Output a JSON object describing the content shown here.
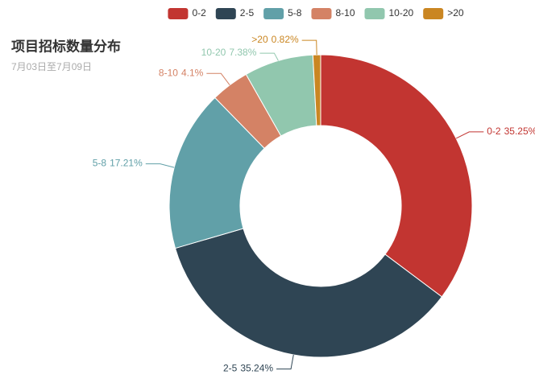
{
  "chart_data": {
    "type": "donut",
    "title": "项目招标数量分布",
    "subtitle": "7月03日至7月09日",
    "categories": [
      "0-2",
      "2-5",
      "5-8",
      "8-10",
      "10-20",
      ">20"
    ],
    "values": [
      35.25,
      35.24,
      17.21,
      4.1,
      7.38,
      0.82
    ],
    "value_labels": [
      "35.25%",
      "35.24%",
      "17.21%",
      "4.1%",
      "7.38%",
      "0.82%"
    ],
    "colors": [
      "#c23531",
      "#2f4554",
      "#61a0a8",
      "#d48265",
      "#91c7ae",
      "#ca8622"
    ],
    "legend": "top"
  }
}
